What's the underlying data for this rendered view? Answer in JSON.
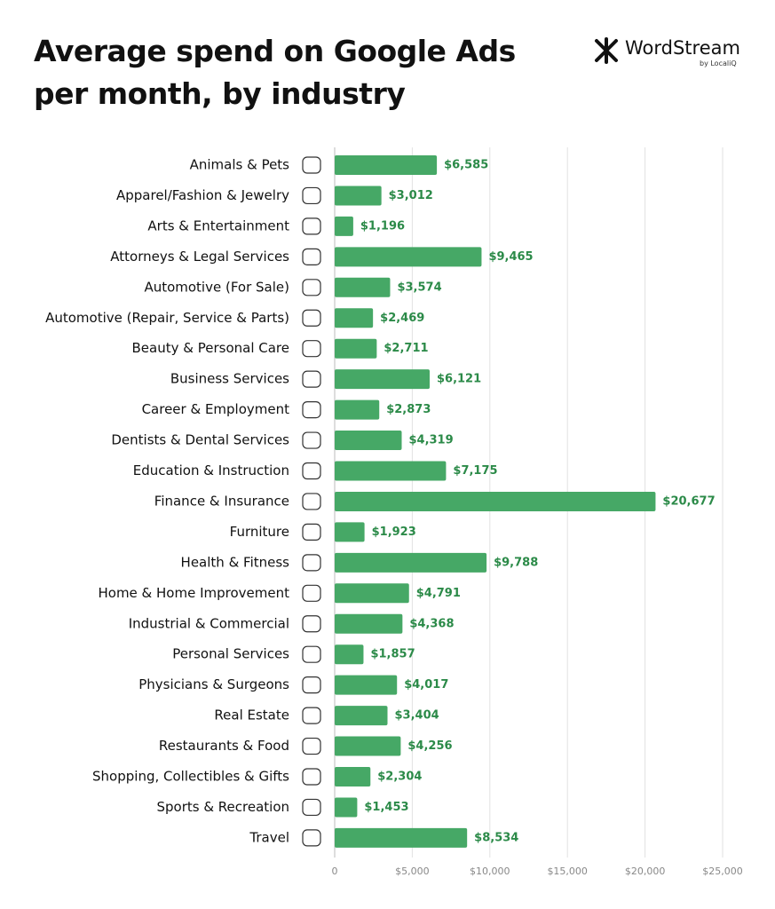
{
  "chart_data": {
    "type": "bar",
    "orientation": "horizontal",
    "title": "Average spend on Google Ads per month, by industry",
    "logo": {
      "name": "WordStream",
      "tagline": "by LocaliQ"
    },
    "categories": [
      "Animals & Pets",
      "Apparel/Fashion & Jewelry",
      "Arts & Entertainment",
      "Attorneys & Legal Services",
      "Automotive (For Sale)",
      "Automotive (Repair, Service & Parts)",
      "Beauty & Personal Care",
      "Business Services",
      "Career & Employment",
      "Dentists & Dental Services",
      "Education & Instruction",
      "Finance & Insurance",
      "Furniture",
      "Health & Fitness",
      "Home & Home Improvement",
      "Industrial & Commercial",
      "Personal Services",
      "Physicians & Surgeons",
      "Real Estate",
      "Restaurants & Food",
      "Shopping, Collectibles & Gifts",
      "Sports & Recreation",
      "Travel"
    ],
    "values": [
      6585,
      3012,
      1196,
      9465,
      3574,
      2469,
      2711,
      6121,
      2873,
      4319,
      7175,
      20677,
      1923,
      9788,
      4791,
      4368,
      1857,
      4017,
      3404,
      4256,
      2304,
      1453,
      8534
    ],
    "value_labels": [
      "$6,585",
      "$3,012",
      "$1,196",
      "$9,465",
      "$3,574",
      "$2,469",
      "$2,711",
      "$6,121",
      "$2,873",
      "$4,319",
      "$7,175",
      "$20,677",
      "$1,923",
      "$9,788",
      "$4,791",
      "$4,368",
      "$1,857",
      "$4,017",
      "$3,404",
      "$4,256",
      "$2,304",
      "$1,453",
      "$8,534"
    ],
    "color": "#46a866",
    "label_color": "#2b8a48",
    "xlim": [
      0,
      25000
    ],
    "xticks": [
      0,
      {
        "value": 5000,
        "label": "$5,000"
      },
      {
        "value": 10000,
        "label": "$10,000"
      },
      {
        "value": 15000,
        "label": "$15,000"
      },
      {
        "value": 20000,
        "label": "$20,000"
      },
      {
        "value": 25000,
        "label": "$25,000"
      }
    ],
    "grid": true
  }
}
